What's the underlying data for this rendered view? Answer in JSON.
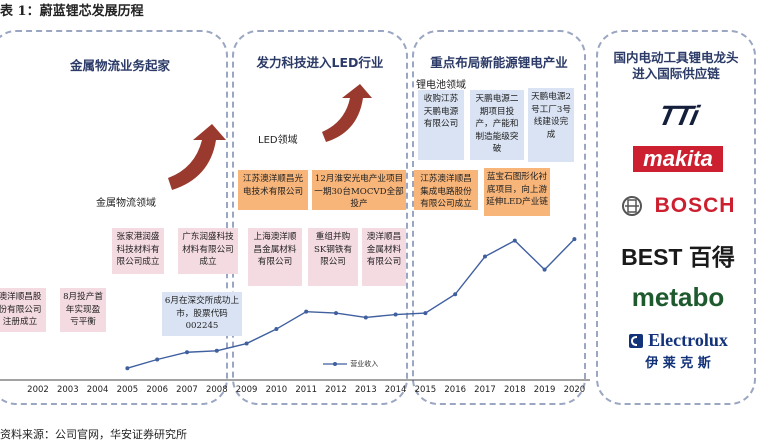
{
  "figure_title": "表 1：蔚蓝锂芯发展历程",
  "phases": [
    {
      "title": "金属物流业务起家"
    },
    {
      "title": "发力科技进入LED行业"
    },
    {
      "title": "重点布局新能源锂电产业"
    },
    {
      "title": "国内电动工具锂电龙头\n进入国际供应链"
    }
  ],
  "segment_labels": {
    "metal": "金属物流领域",
    "led": "LED领域",
    "battery": "锂电池领域"
  },
  "events": [
    {
      "text": "澳洋顺昌股份有限公司注册成立"
    },
    {
      "text": "8月投产首年实现盈亏平衡"
    },
    {
      "text": "张家港润盛科技材料有限公司成立"
    },
    {
      "text": "广东润盛科技材料有限公司成立"
    },
    {
      "text": "6月在深交所成功上市，股票代码002245"
    },
    {
      "text": "上海澳洋顺昌金属材料有限公司"
    },
    {
      "text": "江苏澳洋顺昌光电技术有限公司"
    },
    {
      "text": "重组并购SK钢铁有限公司"
    },
    {
      "text": "12月淮安光电产业项目一期30台MOCVD全部投产"
    },
    {
      "text": "澳洋顺昌金属材料有限公司"
    },
    {
      "text": "江苏澳洋顺昌集成电路股份有限公司成立"
    },
    {
      "text": "收购江苏天鹏电源有限公司"
    },
    {
      "text": "天鹏电源二期项目投产，产能和制造能级突破"
    },
    {
      "text": "天鹏电源2号工厂3号线建设完成"
    },
    {
      "text": "蓝宝石图形化衬底项目，向上游延伸LED产业链"
    }
  ],
  "chart_data": {
    "type": "line",
    "x": [
      "2002",
      "2003",
      "2004",
      "2005",
      "2006",
      "2007",
      "2008",
      "2009",
      "2010",
      "2011",
      "2012",
      "2013",
      "2014",
      "2015",
      "2016",
      "2017",
      "2018",
      "2019",
      "2020"
    ],
    "series": [
      {
        "name": "营业收入",
        "values": [
          null,
          null,
          null,
          0.4,
          1.0,
          1.5,
          1.6,
          2.1,
          3.1,
          4.3,
          4.2,
          3.9,
          4.1,
          4.2,
          5.5,
          8.1,
          9.2,
          7.2,
          9.3
        ]
      }
    ],
    "legend_position": "bottom",
    "grid": false
  },
  "logos": [
    {
      "name": "TTi",
      "text": "TTi",
      "color": "#14203b"
    },
    {
      "name": "Makita",
      "text": "makita",
      "color": "#cc1f2f"
    },
    {
      "name": "Bosch",
      "text": "BOSCH",
      "color": "#cc1f2f"
    },
    {
      "name": "Best",
      "text": "BEST 百得",
      "color": "#1a1a1a"
    },
    {
      "name": "Metabo",
      "text": "metabo",
      "color": "#1e5a2e"
    },
    {
      "name": "Electrolux",
      "text": "Electrolux",
      "color": "#12327a"
    },
    {
      "name": "Electrolux-cn",
      "text": "伊 莱 克 斯",
      "color": "#12327a"
    }
  ],
  "colors": {
    "line": "#3f5f9f",
    "arrow": "#9a3a2e",
    "panel_border": "#9aa6c2"
  },
  "source": "资料来源：公司官网，华安证券研究所"
}
